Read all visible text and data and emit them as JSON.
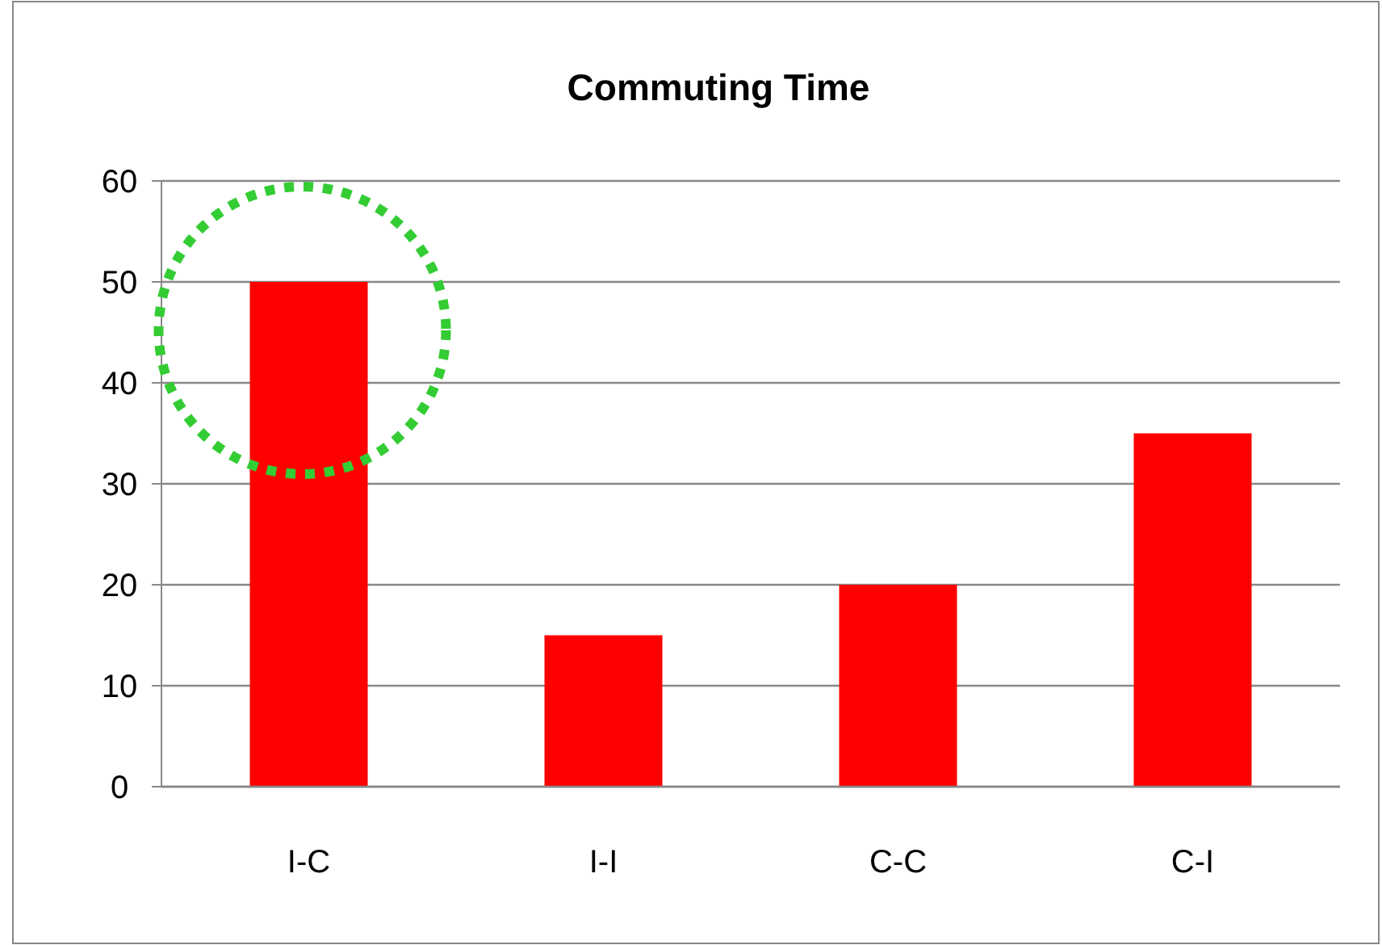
{
  "chart_data": {
    "type": "bar",
    "title": "Commuting Time",
    "categories": [
      "I-C",
      "I-I",
      "C-C",
      "C-I"
    ],
    "values": [
      50,
      15,
      20,
      35
    ],
    "color": "#ff0000",
    "ylim": [
      0,
      60
    ],
    "yticks": [
      0,
      10,
      20,
      30,
      40,
      50,
      60
    ],
    "grid": "y"
  }
}
